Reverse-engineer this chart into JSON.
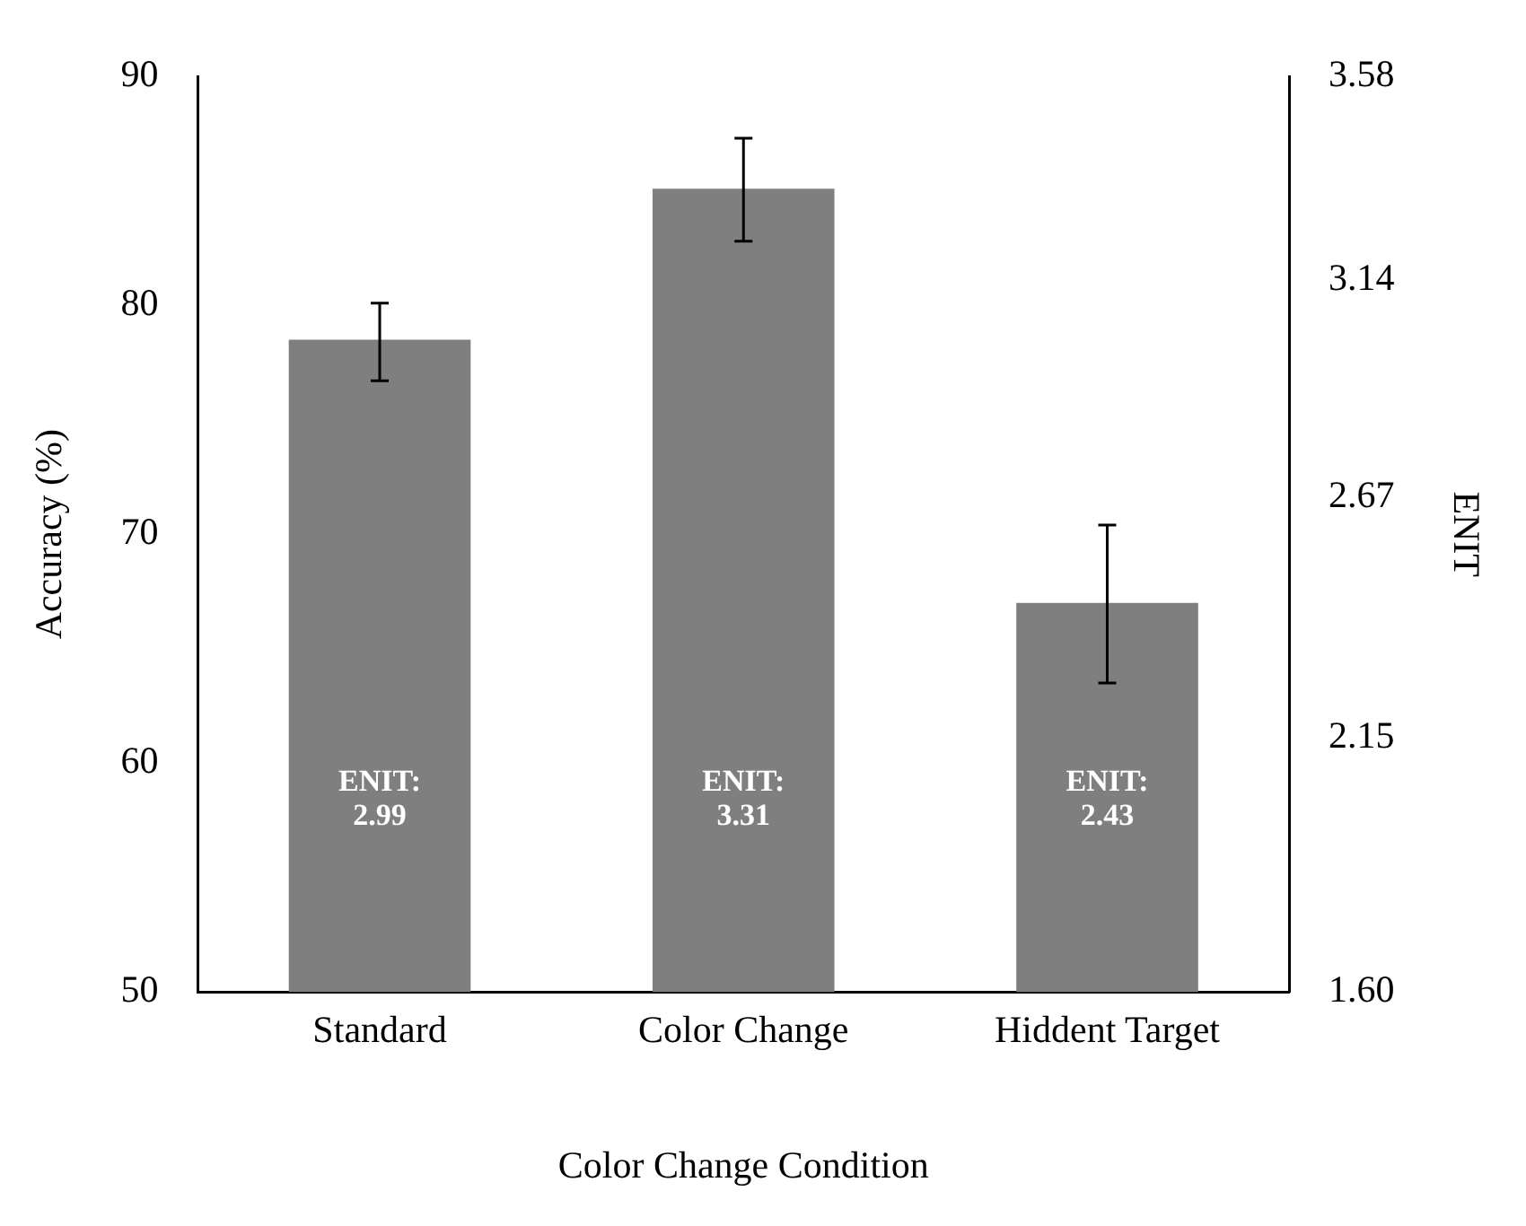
{
  "chart_data": {
    "type": "bar",
    "xlabel": "Color Change Condition",
    "ylabel": "Accuracy (%)",
    "y2label": "ENIT",
    "categories": [
      "Standard",
      "Color Change",
      "Hiddent Target"
    ],
    "values": [
      78.5,
      85.1,
      67.0
    ],
    "color": "#7f7f7f",
    "errors": [
      [
        76.7,
        80.1
      ],
      [
        82.8,
        87.3
      ],
      [
        63.5,
        70.4
      ]
    ],
    "ylim": [
      50,
      90
    ],
    "yticks": [
      50,
      60,
      70,
      80,
      90
    ],
    "y2lim": [
      1.6,
      3.58
    ],
    "y2ticks": [
      {
        "value": 1.6,
        "label": "1.60"
      },
      {
        "value": 2.15,
        "label": "2.15"
      },
      {
        "value": 2.67,
        "label": "2.67"
      },
      {
        "value": 3.14,
        "label": "3.14"
      },
      {
        "value": 3.58,
        "label": "3.58"
      }
    ],
    "annotations": [
      "ENIT:\n2.99",
      "ENIT:\n3.31",
      "ENIT:\n2.43"
    ],
    "grid": false,
    "legend": false
  }
}
